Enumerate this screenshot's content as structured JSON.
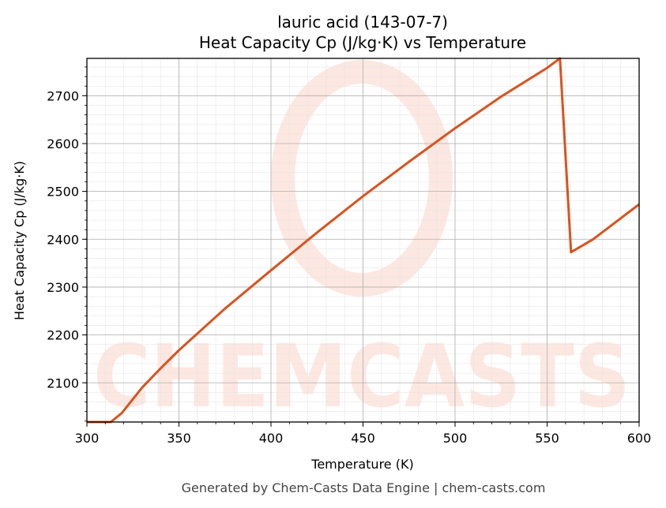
{
  "chart_data": {
    "type": "line",
    "title": "lauric acid (143-07-7)",
    "subtitle": "Heat Capacity Cp (J/kg·K) vs Temperature",
    "xlabel": "Temperature (K)",
    "ylabel": "Heat Capacity Cp (J/kg·K)",
    "xlim": [
      300,
      600
    ],
    "ylim": [
      2018,
      2778
    ],
    "xticks": [
      300,
      350,
      400,
      450,
      500,
      550,
      600
    ],
    "yticks": [
      2100,
      2200,
      2300,
      2400,
      2500,
      2600,
      2700
    ],
    "grid": true,
    "minor_grid": true,
    "legend": "none",
    "series": [
      {
        "color": "#d9531e",
        "x": [
          300,
          313,
          319,
          330,
          340,
          350,
          375,
          400,
          425,
          450,
          475,
          500,
          525,
          550,
          557,
          563,
          575,
          600
        ],
        "y": [
          2018,
          2018,
          2037,
          2090,
          2130,
          2168,
          2255,
          2335,
          2414,
          2490,
          2562,
          2632,
          2698,
          2758,
          2778,
          2373,
          2400,
          2473
        ]
      }
    ]
  },
  "watermark": "CHEMCASTS",
  "footer": "Generated by Chem-Casts Data Engine | chem-casts.com"
}
